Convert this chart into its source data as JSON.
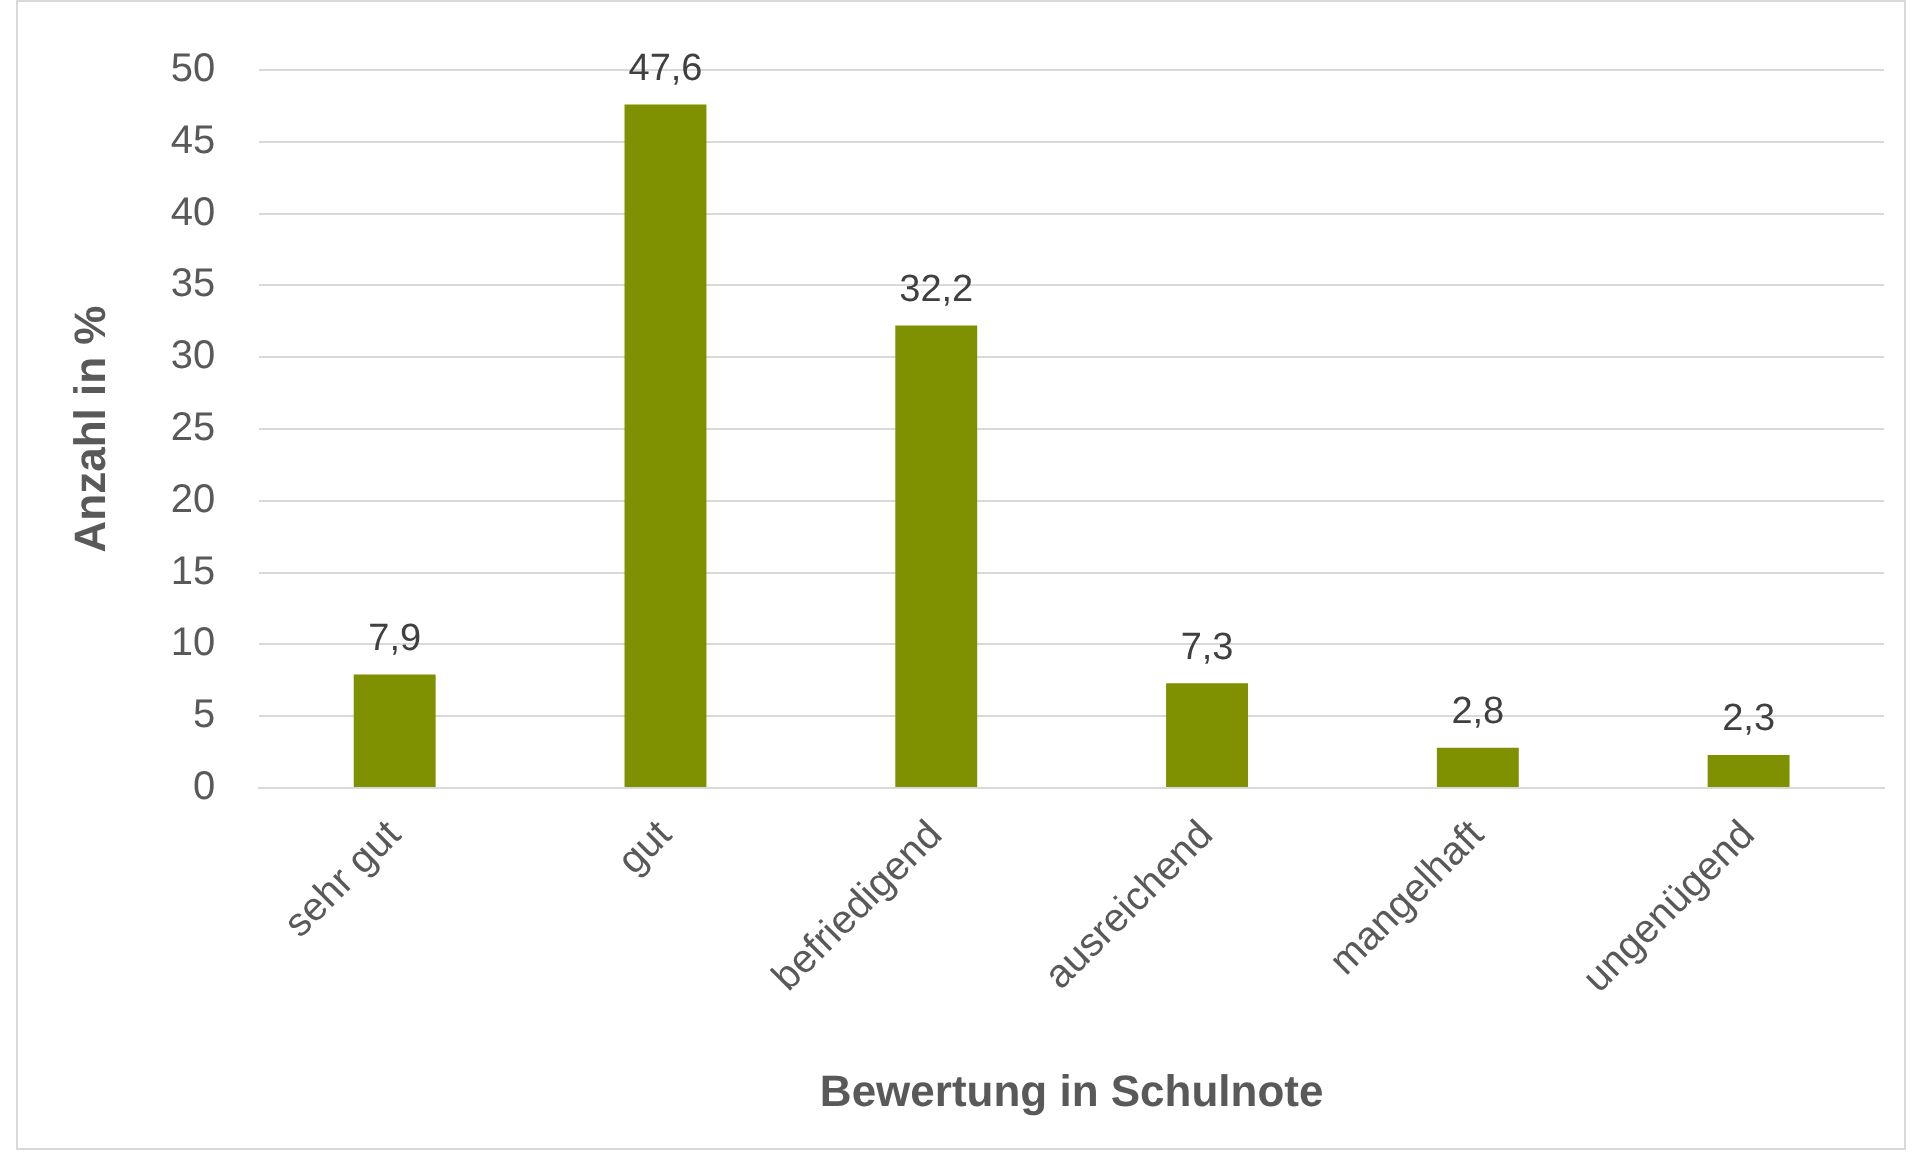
{
  "chart_data": {
    "type": "bar",
    "xlabel": "Bewertung in Schulnote",
    "ylabel": "Anzahl in %",
    "categories": [
      "sehr gut",
      "gut",
      "befriedigend",
      "ausreichend",
      "mangelhaft",
      "ungenügend"
    ],
    "values": [
      7.9,
      47.6,
      32.2,
      7.3,
      2.8,
      2.3
    ],
    "value_labels": [
      "7,9",
      "47,6",
      "32,2",
      "7,3",
      "2,8",
      "2,3"
    ],
    "color": "#7f9000",
    "ylim": [
      0,
      50
    ],
    "yticks": [
      0,
      5,
      10,
      15,
      20,
      25,
      30,
      35,
      40,
      45,
      50
    ],
    "grid": "y",
    "legend": false
  }
}
